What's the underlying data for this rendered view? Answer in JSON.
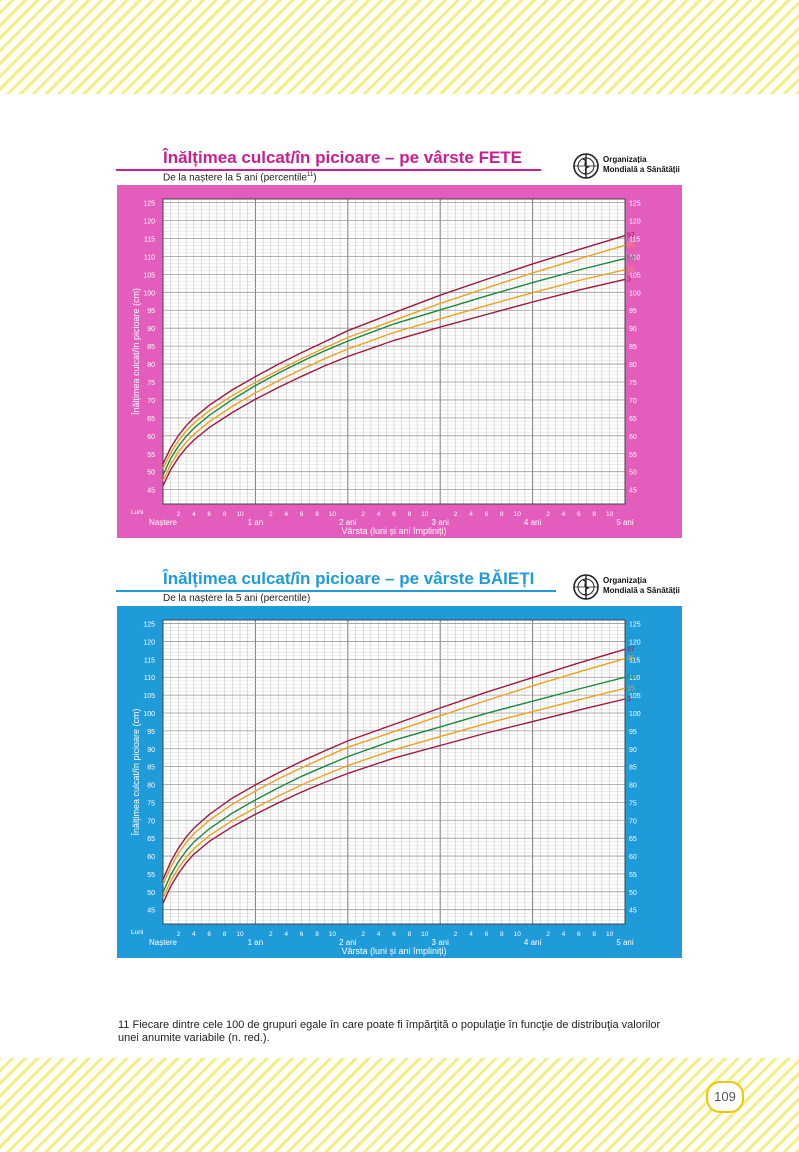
{
  "page_number": "109",
  "footnote": "11 Fiecare dintre cele 100 de grupuri egale în care poate fi împărţită o populaţie în funcţie de distribuţia valorilor unei anumite variabile (n. red.).",
  "who_org": {
    "line1": "Organizația",
    "line2": "Mondială a Sănătății"
  },
  "chart_data": [
    {
      "type": "line",
      "title": "Înălțimea culcat/în picioare – pe vârste FETE",
      "subtitle": "De la naștere la 5 ani (percentile",
      "subtitle_sup": "11",
      "subtitle_end": ")",
      "ylabel": "Înălțimea culcat/în picioare (cm)",
      "xlabel": "Vârsta (luni și ani împliniți)",
      "x_unit_label": "Luni",
      "x_major_labels": [
        "Naștere",
        "1 an",
        "2 ani",
        "3 ani",
        "4 ani",
        "5 ani"
      ],
      "x_minor_ticks": [
        "2",
        "4",
        "6",
        "8",
        "10"
      ],
      "xlim": [
        0,
        60
      ],
      "ylim": [
        41,
        126
      ],
      "y_ticks": [
        45,
        50,
        55,
        60,
        65,
        70,
        75,
        80,
        85,
        90,
        95,
        100,
        105,
        110,
        115,
        120,
        125
      ],
      "panel_color": "#e35ebc",
      "title_color": "#c8218f",
      "x": [
        0,
        1,
        2,
        3,
        4,
        6,
        9,
        12,
        15,
        18,
        21,
        24,
        30,
        36,
        42,
        48,
        54,
        60
      ],
      "series": [
        {
          "name": "97",
          "color": "#a0193c",
          "values": [
            52.2,
            56.7,
            60.1,
            62.8,
            65.0,
            68.5,
            72.8,
            76.5,
            80.0,
            83.2,
            86.2,
            89.3,
            94.3,
            99.2,
            103.6,
            107.9,
            111.9,
            115.8
          ]
        },
        {
          "name": "85",
          "color": "#f0a020",
          "values": [
            50.8,
            55.2,
            58.6,
            61.3,
            63.5,
            67.0,
            71.2,
            74.9,
            78.3,
            81.5,
            84.5,
            87.4,
            92.2,
            96.9,
            101.2,
            105.4,
            109.3,
            113.1
          ]
        },
        {
          "name": "50",
          "color": "#1a8a3a",
          "values": [
            49.1,
            53.7,
            57.1,
            59.8,
            62.1,
            65.7,
            70.1,
            74.0,
            77.5,
            80.7,
            83.7,
            86.4,
            91.2,
            95.1,
            99.0,
            102.7,
            106.2,
            109.4
          ]
        },
        {
          "name": "15",
          "color": "#f0a020",
          "values": [
            47.5,
            52.1,
            55.5,
            58.2,
            60.4,
            63.9,
            68.2,
            72.0,
            75.4,
            78.5,
            81.5,
            84.2,
            88.8,
            92.6,
            96.3,
            99.9,
            103.3,
            106.3
          ]
        },
        {
          "name": "3",
          "color": "#a0193c",
          "values": [
            46.1,
            50.6,
            53.9,
            56.6,
            58.8,
            62.3,
            66.5,
            70.2,
            73.5,
            76.6,
            79.5,
            82.1,
            86.6,
            90.3,
            93.8,
            97.3,
            100.6,
            103.6
          ]
        }
      ]
    },
    {
      "type": "line",
      "title": "Înălțimea culcat/în picioare – pe vârste BĂIEȚI",
      "subtitle": "De la naștere la 5 ani (percentile)",
      "subtitle_sup": "",
      "subtitle_end": "",
      "ylabel": "Înălțimea culcat/în picioare (cm)",
      "xlabel": "Vârsta (luni și ani împliniți)",
      "x_unit_label": "Luni",
      "x_major_labels": [
        "Naștere",
        "1 an",
        "2 ani",
        "3 ani",
        "4 ani",
        "5 ani"
      ],
      "x_minor_ticks": [
        "2",
        "4",
        "6",
        "8",
        "10"
      ],
      "xlim": [
        0,
        60
      ],
      "ylim": [
        41,
        126
      ],
      "y_ticks": [
        45,
        50,
        55,
        60,
        65,
        70,
        75,
        80,
        85,
        90,
        95,
        100,
        105,
        110,
        115,
        120,
        125
      ],
      "panel_color": "#1e9bd8",
      "title_color": "#1e9bd8",
      "x": [
        0,
        1,
        2,
        3,
        4,
        6,
        9,
        12,
        15,
        18,
        21,
        24,
        30,
        36,
        42,
        48,
        54,
        60
      ],
      "series": [
        {
          "name": "97",
          "color": "#a0193c",
          "values": [
            53.4,
            58.4,
            62.2,
            65.3,
            67.8,
            71.6,
            76.2,
            79.9,
            83.3,
            86.5,
            89.4,
            92.2,
            96.8,
            101.4,
            105.8,
            109.9,
            114.0,
            117.8
          ]
        },
        {
          "name": "85",
          "color": "#f0a020",
          "values": [
            52.0,
            56.9,
            60.7,
            63.8,
            66.2,
            70.0,
            74.5,
            78.2,
            81.6,
            84.7,
            87.6,
            90.4,
            94.8,
            99.2,
            103.5,
            107.6,
            111.5,
            115.2
          ]
        },
        {
          "name": "50",
          "color": "#1a8a3a",
          "values": [
            49.9,
            54.7,
            58.4,
            61.4,
            63.9,
            67.6,
            72.0,
            75.7,
            79.1,
            82.3,
            85.1,
            87.8,
            92.4,
            96.1,
            99.9,
            103.3,
            106.7,
            110.0
          ]
        },
        {
          "name": "15",
          "color": "#f0a020",
          "values": [
            48.2,
            53.0,
            56.6,
            59.6,
            62.0,
            65.7,
            69.9,
            73.5,
            76.8,
            79.9,
            82.7,
            85.3,
            89.7,
            93.4,
            97.1,
            100.4,
            103.7,
            106.9
          ]
        },
        {
          "name": "3",
          "color": "#a0193c",
          "values": [
            46.8,
            51.5,
            55.1,
            58.1,
            60.5,
            64.1,
            68.2,
            71.7,
            74.9,
            77.9,
            80.6,
            83.1,
            87.4,
            90.9,
            94.4,
            97.6,
            100.8,
            103.9
          ]
        }
      ]
    }
  ]
}
